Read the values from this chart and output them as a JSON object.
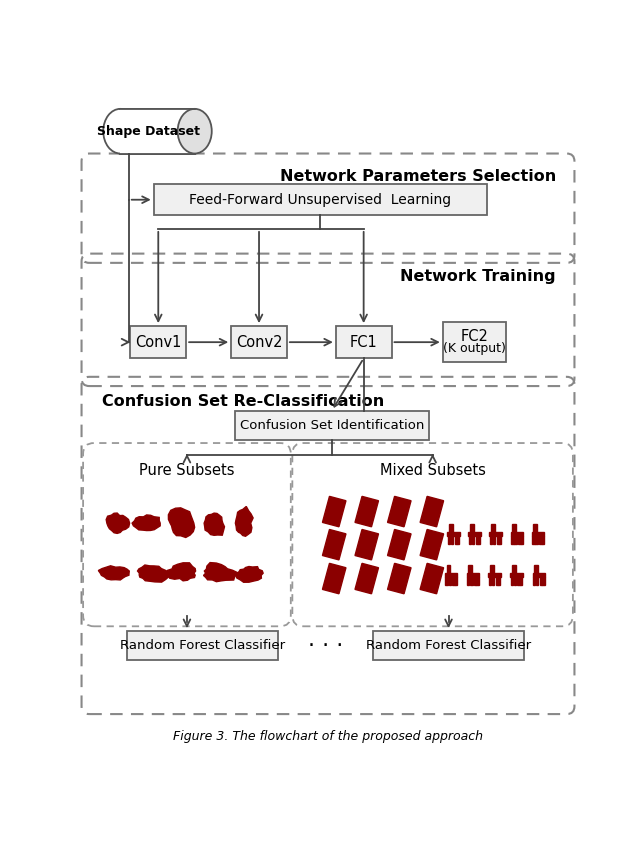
{
  "title": "Figure 3. The flowchart of the proposed approach",
  "bg_color": "#ffffff",
  "arrow_color": "#444444",
  "section1_label": "Network Parameters Selection",
  "section2_label": "Network Training",
  "section3_label": "Confusion Set Re-Classification",
  "dataset_label": "Shape Dataset",
  "ffus_label": "Feed-Forward Unsupervised  Learning",
  "conv1_label": "Conv1",
  "conv2_label": "Conv2",
  "fc1_label": "FC1",
  "fc2_line1": "FC2",
  "fc2_line2": "(K output)",
  "csi_label": "Confusion Set Identification",
  "pure_label": "Pure Subsets",
  "mixed_label": "Mixed Subsets",
  "rfc1_label": "Random Forest Classifier",
  "rfc2_label": "Random Forest Classifier",
  "dots": "· · ·",
  "dark_red": "#8B0000",
  "box_edge": "#666666",
  "dashed_edge": "#888888",
  "subset_edge": "#999999"
}
